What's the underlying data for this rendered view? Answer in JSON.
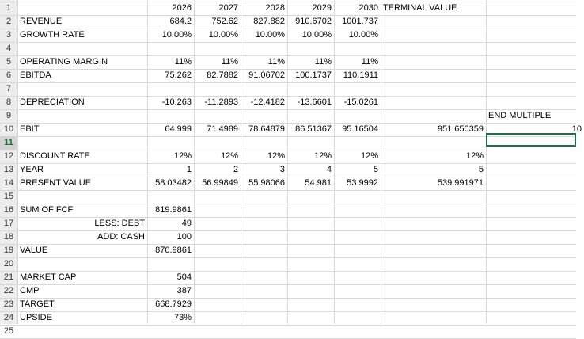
{
  "rows": [
    {
      "id": "1",
      "cells": {
        "C": "2026",
        "D": "2027",
        "E": "2028",
        "F": "2029",
        "G": "2030",
        "H": "TERMINAL VALUE"
      }
    },
    {
      "id": "2",
      "cells": {
        "A": "REVENUE",
        "C": "684.2",
        "D": "752.62",
        "E": "827.882",
        "F": "910.6702",
        "G": "1001.737"
      }
    },
    {
      "id": "3",
      "cells": {
        "A": "GROWTH RATE",
        "C": "10.00%",
        "D": "10.00%",
        "E": "10.00%",
        "F": "10.00%",
        "G": "10.00%"
      }
    },
    {
      "id": "4",
      "cells": {}
    },
    {
      "id": "5",
      "cells": {
        "A": "OPERATING MARGIN",
        "C": "11%",
        "D": "11%",
        "E": "11%",
        "F": "11%",
        "G": "11%"
      }
    },
    {
      "id": "6",
      "cells": {
        "A": "EBITDA",
        "C": "75.262",
        "D": "82.7882",
        "E": "91.06702",
        "F": "100.1737",
        "G": "110.1911"
      }
    },
    {
      "id": "7",
      "cells": {}
    },
    {
      "id": "8",
      "cells": {
        "A": "DEPRECIATION",
        "C": "-10.263",
        "D": "-11.2893",
        "E": "-12.4182",
        "F": "-13.6601",
        "G": "-15.0261"
      }
    },
    {
      "id": "9",
      "cells": {
        "I": "END MULTIPLE"
      }
    },
    {
      "id": "10",
      "cells": {
        "A": "EBIT",
        "C": "64.999",
        "D": "71.4989",
        "E": "78.64879",
        "F": "86.51367",
        "G": "95.16504",
        "H": "951.650359",
        "I": "10"
      }
    },
    {
      "id": "11",
      "cells": {}
    },
    {
      "id": "12",
      "cells": {
        "A": "DISCOUNT RATE",
        "C": "12%",
        "D": "12%",
        "E": "12%",
        "F": "12%",
        "G": "12%",
        "H": "12%"
      }
    },
    {
      "id": "13",
      "cells": {
        "A": "YEAR",
        "C": "1",
        "D": "2",
        "E": "3",
        "F": "4",
        "G": "5",
        "H": "5"
      }
    },
    {
      "id": "14",
      "cells": {
        "A": "PRESENT VALUE",
        "C": "58.03482",
        "D": "56.99849",
        "E": "55.98066",
        "F": "54.981",
        "G": "53.9992",
        "H": "539.991971"
      }
    },
    {
      "id": "15",
      "cells": {}
    },
    {
      "id": "16",
      "cells": {
        "A": "SUM OF FCF",
        "C": "819.9861"
      }
    },
    {
      "id": "17",
      "cells": {
        "B": "LESS: DEBT",
        "C": "49"
      }
    },
    {
      "id": "18",
      "cells": {
        "B": "ADD: CASH",
        "C": "100"
      }
    },
    {
      "id": "19",
      "cells": {
        "A": "VALUE",
        "C": "870.9861"
      }
    },
    {
      "id": "20",
      "cells": {}
    },
    {
      "id": "21",
      "cells": {
        "A": "MARKET CAP",
        "C": "504"
      }
    },
    {
      "id": "22",
      "cells": {
        "A": "CMP",
        "C": "387"
      }
    },
    {
      "id": "23",
      "cells": {
        "A": "TARGET",
        "C": "668.7929"
      }
    },
    {
      "id": "24",
      "cells": {
        "A": "UPSIDE",
        "C": "73%"
      }
    },
    {
      "id": "25",
      "cells": {}
    }
  ],
  "selection": {
    "row": "11",
    "column": "I"
  },
  "colors": {
    "gridline": "#d9d9d9",
    "row_header_bg": "#ececec",
    "selection": "#1e7145"
  }
}
